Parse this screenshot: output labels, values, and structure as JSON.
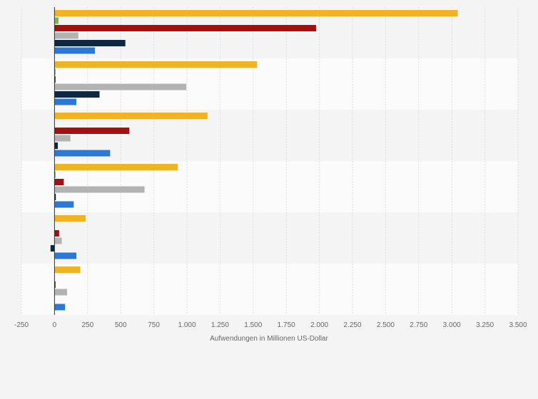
{
  "chart_data": {
    "type": "bar",
    "orientation": "horizontal",
    "xlabel": "Aufwendungen in Millionen US-Dollar",
    "ylabel": "",
    "xlim": [
      -250,
      3500
    ],
    "x_ticks": [
      -250,
      0,
      250,
      500,
      750,
      1000,
      1250,
      1500,
      1750,
      2000,
      2250,
      2500,
      2750,
      3000,
      3250,
      3500
    ],
    "x_tick_labels": [
      "-250",
      "0",
      "250",
      "500",
      "750",
      "1.000",
      "1.250",
      "1.500",
      "1.750",
      "2.000",
      "2.250",
      "2.500",
      "2.750",
      "3.000",
      "3.250",
      "3.500"
    ],
    "grid": "vertical",
    "legend": "none",
    "categories": [
      "",
      "",
      "",
      "",
      "",
      ""
    ],
    "series": [
      {
        "color": "#f0b323",
        "values": [
          3045,
          1530,
          1155,
          930,
          235,
          195
        ]
      },
      {
        "color": "#7ab648",
        "values": [
          30,
          2,
          0,
          3,
          0,
          0
        ]
      },
      {
        "color": "#a50f0f",
        "values": [
          1975,
          5,
          565,
          70,
          35,
          3
        ]
      },
      {
        "color": "#b3b3b3",
        "values": [
          180,
          995,
          120,
          680,
          55,
          95
        ]
      },
      {
        "color": "#0e2841",
        "values": [
          535,
          340,
          25,
          10,
          -30,
          0
        ]
      },
      {
        "color": "#2b78d6",
        "values": [
          305,
          165,
          420,
          145,
          165,
          80
        ]
      }
    ]
  }
}
